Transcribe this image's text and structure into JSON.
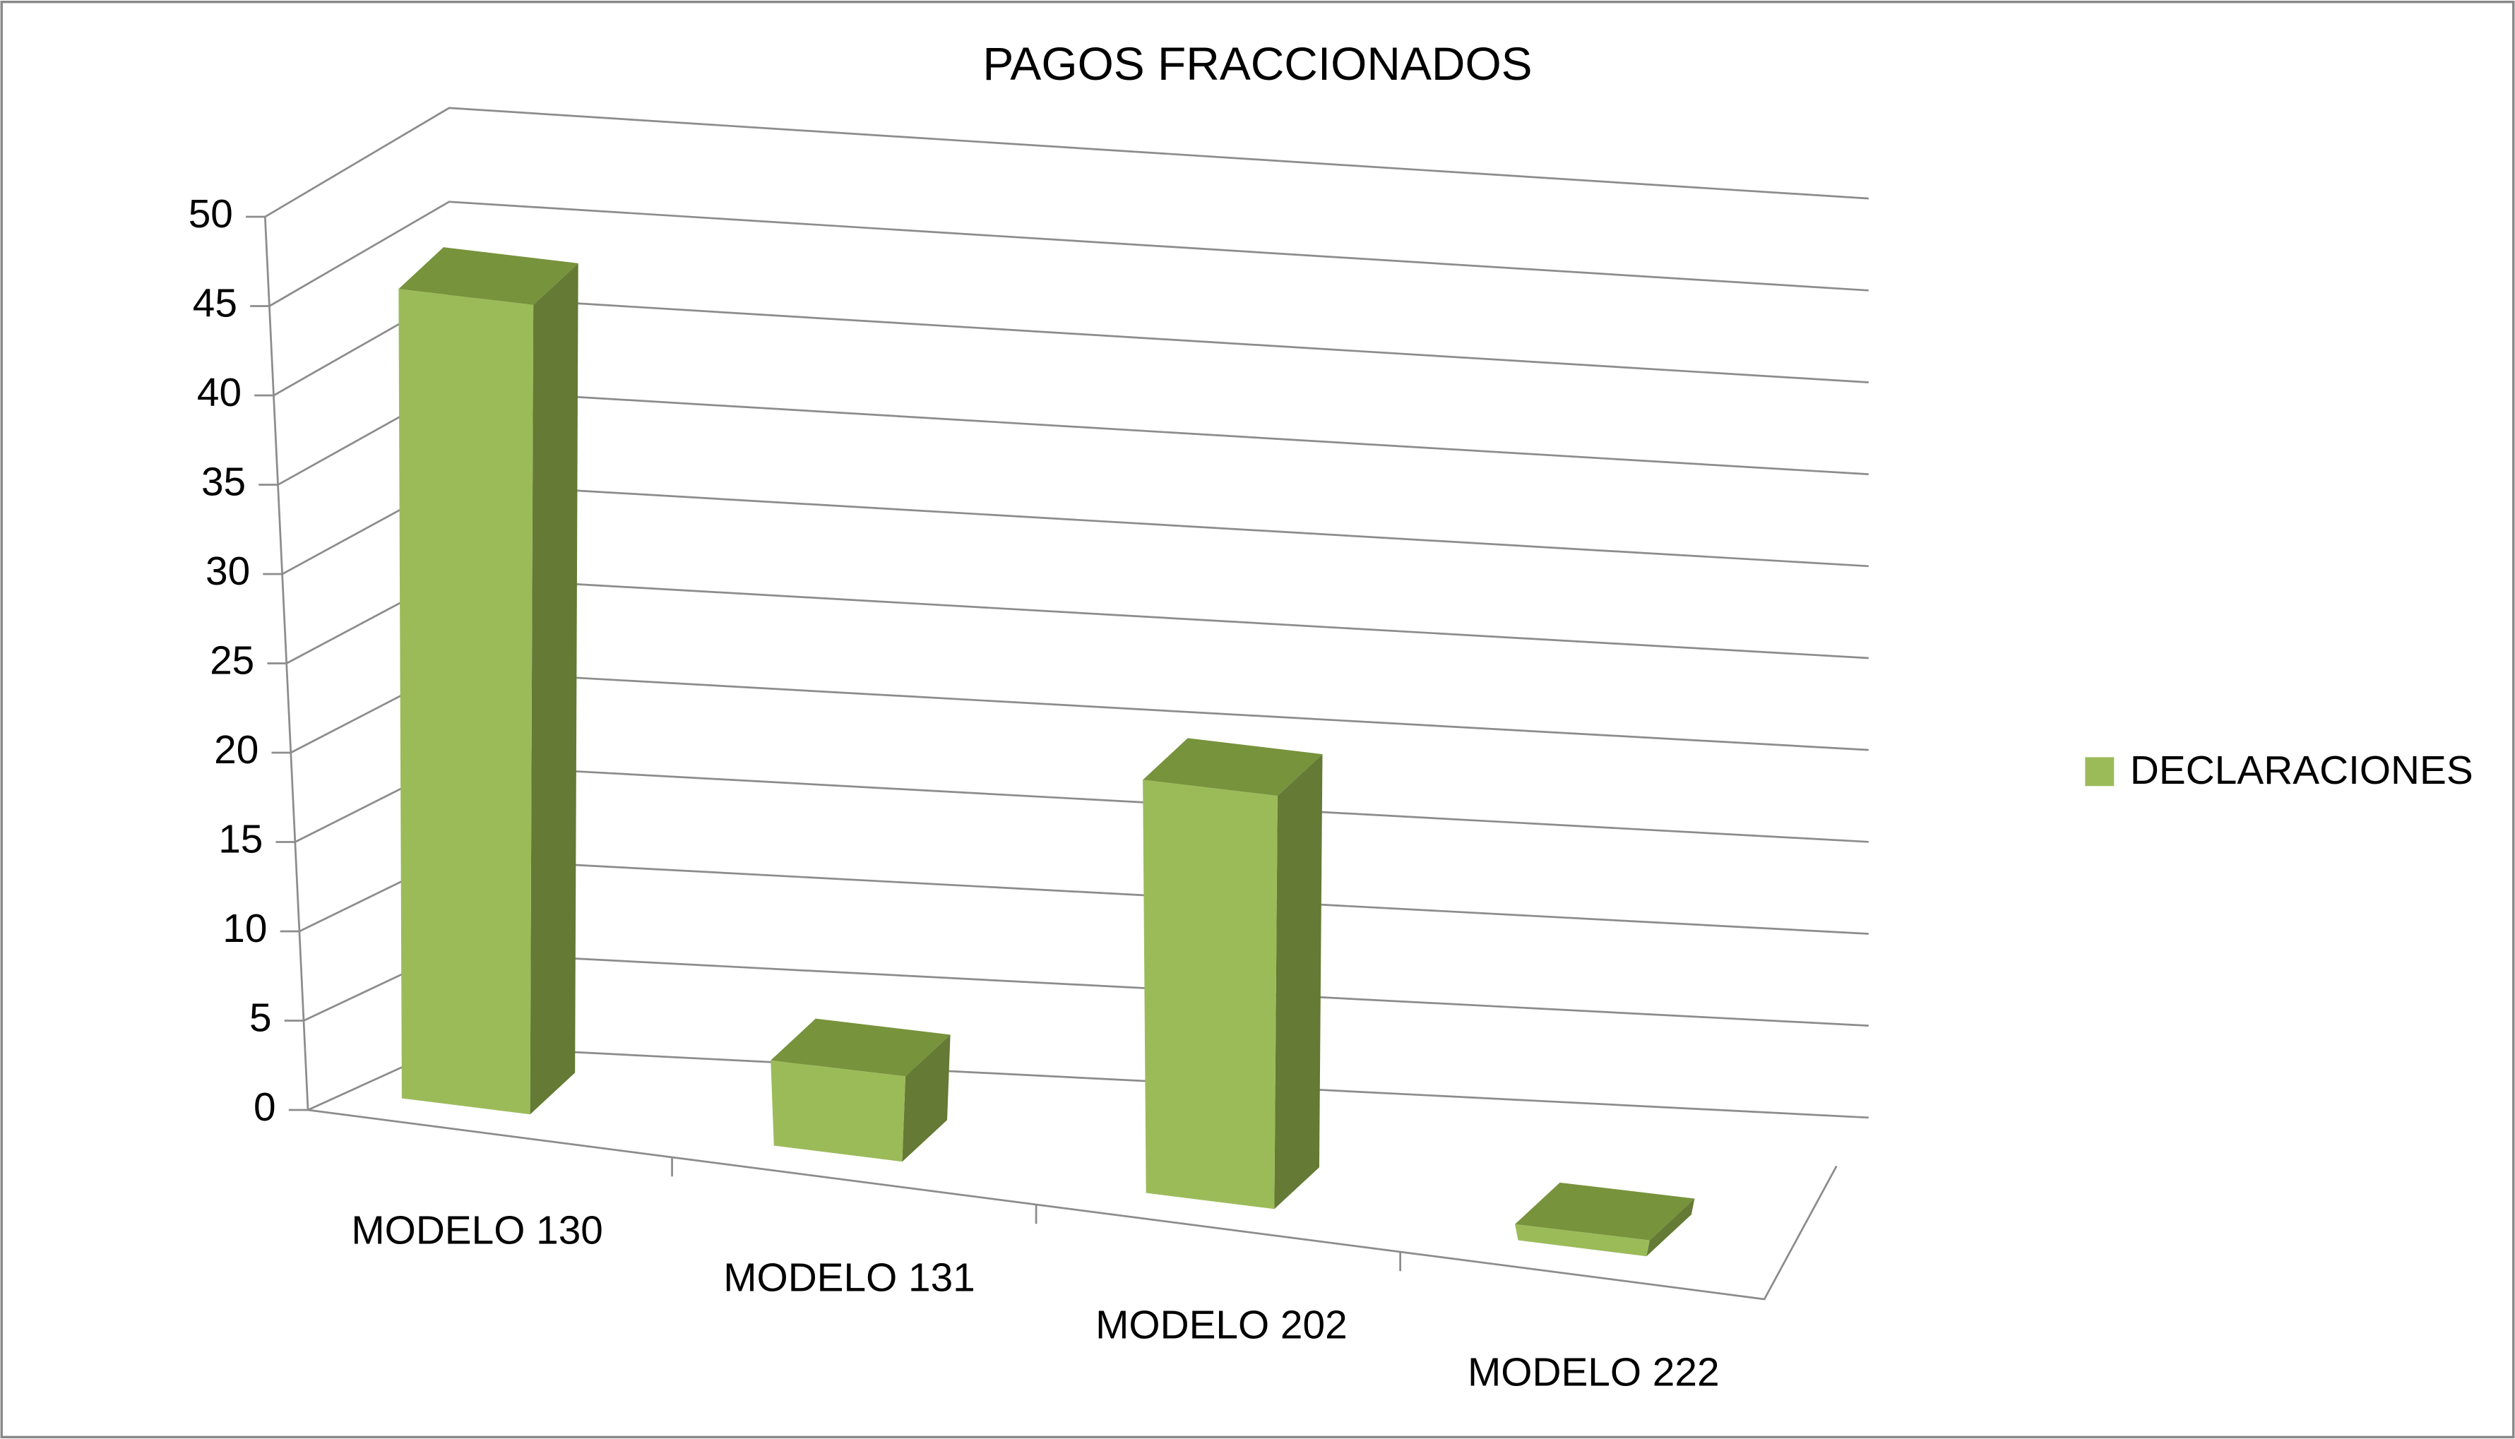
{
  "chart_data": {
    "type": "bar3d",
    "title": "PAGOS FRACCIONADOS",
    "categories": [
      "MODELO 130",
      "MODELO 131",
      "MODELO 202",
      "MODELO 222"
    ],
    "series": [
      {
        "name": "DECLARACIONES",
        "color": "#9bbb59",
        "values": [
          46,
          5,
          25,
          1
        ]
      }
    ],
    "ylim": [
      0,
      50
    ],
    "yticks": [
      0,
      5,
      10,
      15,
      20,
      25,
      30,
      35,
      40,
      45,
      50
    ],
    "grid": true,
    "legend": "right"
  }
}
